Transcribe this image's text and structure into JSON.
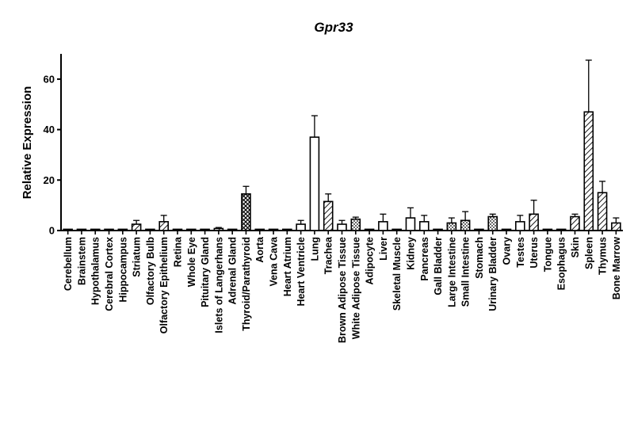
{
  "chart_data": {
    "type": "bar",
    "title": "Gpr33",
    "xlabel": "",
    "ylabel": "Relative Expression",
    "ylim": [
      0,
      70
    ],
    "yticks": [
      0,
      20,
      40,
      60
    ],
    "grid": false,
    "categories": [
      "Cerebellum",
      "Brainstem",
      "Hypothalamus",
      "Cerebral Cortex",
      "Hippocampus",
      "Striatum",
      "Olfactory Bulb",
      "Olfactory Epithelium",
      "Retina",
      "Whole Eye",
      "Pituitary Gland",
      "Islets of Langerhans",
      "Adrenal Gland",
      "Thyroid/Parathyroid",
      "Aorta",
      "Vena Cava",
      "Heart Atrium",
      "Heart Ventricle",
      "Lung",
      "Trachea",
      "Brown Adipose Tissue",
      "White Adipose Tissue",
      "Adipocyte",
      "Liver",
      "Skeletal Muscle",
      "Kidney",
      "Pancreas",
      "Gall Bladder",
      "Large Intestine",
      "Small Intestine",
      "Stomach",
      "Urinary Bladder",
      "Ovary",
      "Testes",
      "Uterus",
      "Tongue",
      "Esophagus",
      "Skin",
      "Spleen",
      "Thymus",
      "Bone Marrow"
    ],
    "values": [
      0.5,
      0.5,
      0.5,
      0.5,
      0.5,
      2.5,
      0.5,
      3.5,
      0.5,
      0.5,
      0.5,
      0.8,
      0.5,
      14.5,
      0.5,
      0.5,
      0.5,
      2.5,
      37.0,
      11.5,
      2.5,
      4.5,
      0.5,
      3.5,
      0.5,
      5.0,
      3.5,
      0.5,
      3.0,
      4.0,
      0.5,
      5.5,
      0.5,
      3.5,
      6.5,
      0.5,
      0.5,
      5.5,
      47.0,
      15.0,
      3.0
    ],
    "errors": [
      0.3,
      0.3,
      0.3,
      0.3,
      0.3,
      1.5,
      0.3,
      2.5,
      0.3,
      0.3,
      0.3,
      0.4,
      0.3,
      3.0,
      0.3,
      0.3,
      0.3,
      1.5,
      8.5,
      3.0,
      1.5,
      0.8,
      0.3,
      3.0,
      0.3,
      4.0,
      2.5,
      0.3,
      2.0,
      3.5,
      0.3,
      1.0,
      0.3,
      2.5,
      5.5,
      0.3,
      0.3,
      1.0,
      20.5,
      4.5,
      2.0
    ],
    "patterns": [
      "hatch",
      "hatch",
      "hatch",
      "hatch",
      "hatch",
      "hatch",
      "hatch",
      "hatch",
      "hatch",
      "hatch",
      "hatch",
      "hatch",
      "hatch",
      "cross",
      "hatch",
      "hatch",
      "hatch",
      "white",
      "white",
      "hatch",
      "white",
      "dots",
      "hatch",
      "white",
      "hatch",
      "white",
      "white",
      "hatch",
      "dots",
      "dots",
      "hatch",
      "dots",
      "hatch",
      "white",
      "hatch",
      "hatch",
      "hatch",
      "hatch",
      "hatch",
      "hatch",
      "hatch"
    ]
  }
}
